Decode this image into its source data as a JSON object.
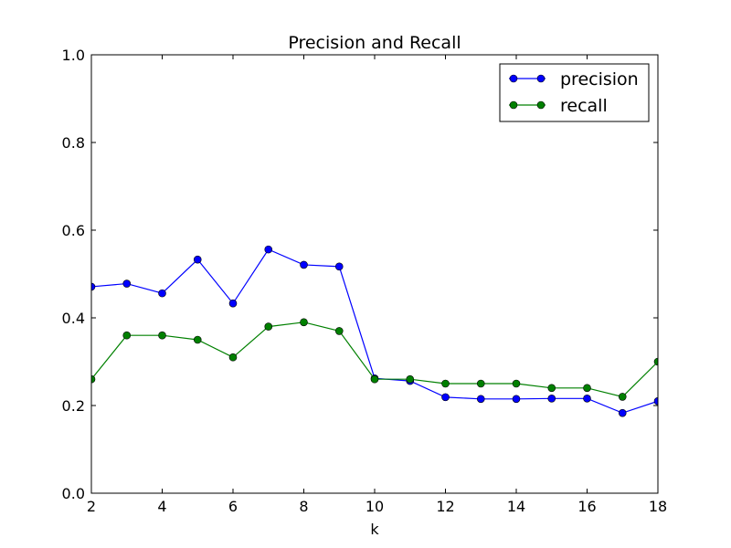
{
  "chart_data": {
    "type": "line",
    "title": "Precision and Recall",
    "xlabel": "k",
    "ylabel": "",
    "xlim": [
      2,
      18
    ],
    "ylim": [
      0.0,
      1.0
    ],
    "x_ticks": [
      "2",
      "4",
      "6",
      "8",
      "10",
      "12",
      "14",
      "16",
      "18"
    ],
    "y_ticks": [
      "0.0",
      "0.2",
      "0.4",
      "0.6",
      "0.8",
      "1.0"
    ],
    "grid": false,
    "legend_position": "top-right",
    "x": [
      2,
      3,
      4,
      5,
      6,
      7,
      8,
      9,
      10,
      11,
      12,
      13,
      14,
      15,
      16,
      17,
      18
    ],
    "series": [
      {
        "name": "precision",
        "color": "#0000ff",
        "values": [
          0.471,
          0.478,
          0.456,
          0.533,
          0.433,
          0.556,
          0.521,
          0.517,
          0.262,
          0.256,
          0.219,
          0.215,
          0.215,
          0.216,
          0.216,
          0.183,
          0.21
        ]
      },
      {
        "name": "recall",
        "color": "#008000",
        "values": [
          0.26,
          0.36,
          0.36,
          0.35,
          0.31,
          0.38,
          0.39,
          0.37,
          0.26,
          0.26,
          0.25,
          0.25,
          0.25,
          0.24,
          0.24,
          0.22,
          0.3
        ]
      }
    ]
  }
}
